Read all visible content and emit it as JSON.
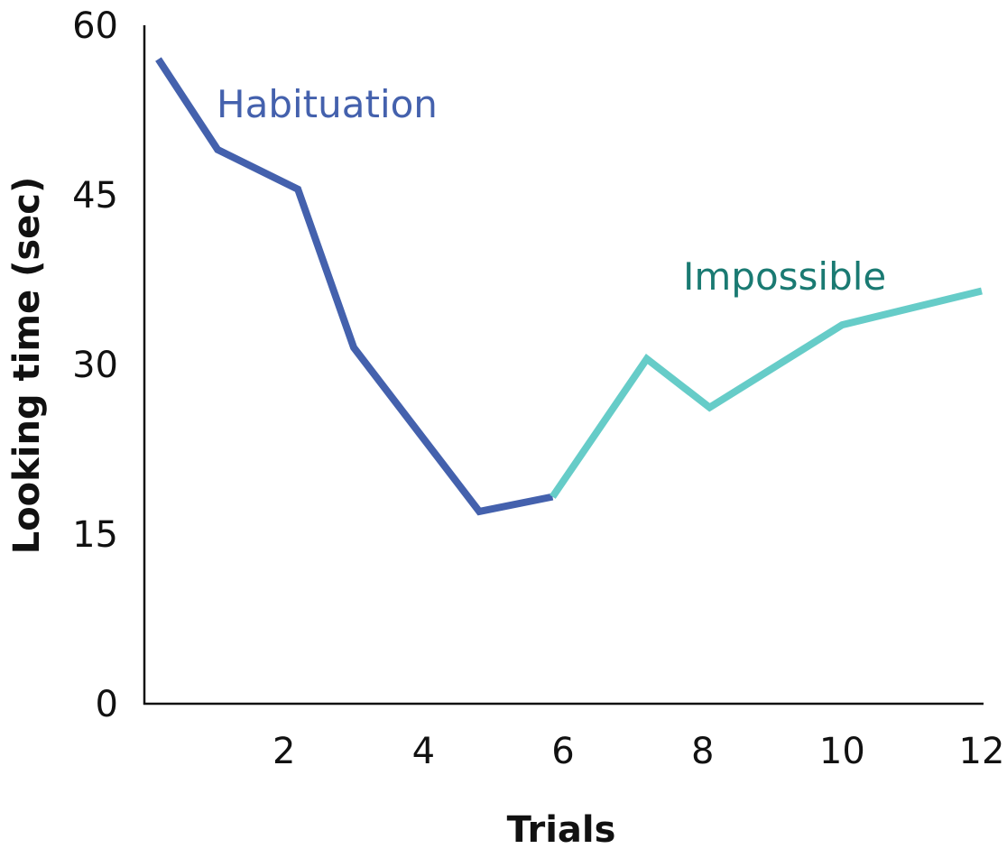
{
  "chart_data": {
    "type": "line",
    "title": "",
    "xlabel": "Trials",
    "ylabel": "Looking time (sec)",
    "xlim": [
      0,
      12
    ],
    "ylim": [
      0,
      60
    ],
    "xticks": [
      2,
      4,
      6,
      8,
      10,
      12
    ],
    "yticks": [
      0,
      15,
      30,
      45,
      60
    ],
    "grid": false,
    "series": [
      {
        "name": "Habituation",
        "color": "#4461ad",
        "label_color": "#4461ad",
        "x": [
          0.2,
          1.05,
          2.2,
          3.0,
          4.8,
          5.85
        ],
        "y": [
          57,
          49,
          45.5,
          31.5,
          17,
          18.3
        ]
      },
      {
        "name": "Impossible",
        "color": "#66ccc8",
        "label_color": "#1a7a72",
        "x": [
          5.85,
          7.2,
          8.1,
          10.0,
          12.0
        ],
        "y": [
          18.3,
          30.5,
          26.2,
          33.5,
          36.5
        ]
      }
    ]
  }
}
